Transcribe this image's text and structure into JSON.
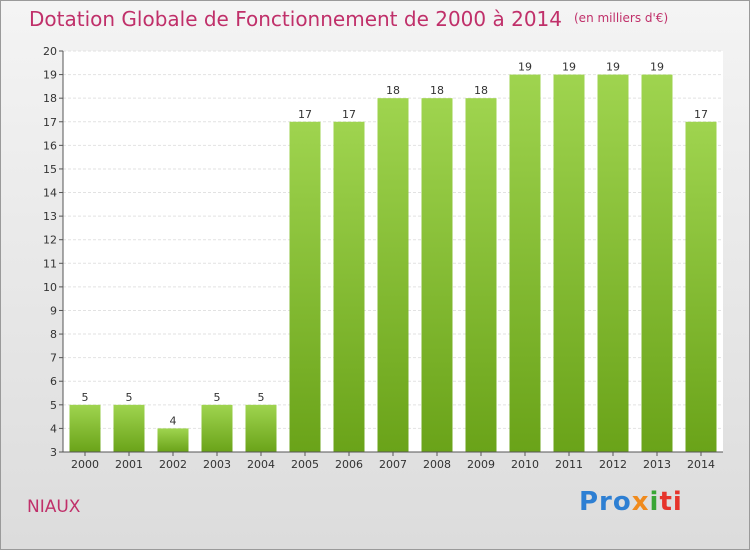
{
  "title": "Dotation Globale de Fonctionnement de 2000 à 2014",
  "subtitle": "(en milliers d'€)",
  "commune": "NIAUX",
  "logo": {
    "p1": "Pro",
    "p2": "x",
    "p3": "i",
    "p4": "ti"
  },
  "colors": {
    "title": "#c0306a",
    "bar_top": "#9fd44f",
    "bar_bottom": "#6aa319"
  },
  "chart_data": {
    "type": "bar",
    "title": "Dotation Globale de Fonctionnement de 2000 à 2014",
    "subtitle": "(en milliers d'€)",
    "categories": [
      "2000",
      "2001",
      "2002",
      "2003",
      "2004",
      "2005",
      "2006",
      "2007",
      "2008",
      "2009",
      "2010",
      "2011",
      "2012",
      "2013",
      "2014"
    ],
    "values": [
      5,
      5,
      4,
      5,
      5,
      17,
      17,
      18,
      18,
      18,
      19,
      19,
      19,
      19,
      17
    ],
    "value_labels": [
      "5",
      "5",
      "4",
      "5",
      "5",
      "17",
      "17",
      "18",
      "18",
      "18",
      "19",
      "19",
      "19",
      "19",
      "17"
    ],
    "yticks": [
      "3",
      "4",
      "5",
      "6",
      "7",
      "8",
      "9",
      "10",
      "11",
      "12",
      "13",
      "14",
      "15",
      "16",
      "17",
      "18",
      "19",
      "20"
    ],
    "xlabel": "",
    "ylabel": "",
    "ylim": [
      3,
      20
    ],
    "grid": true
  }
}
